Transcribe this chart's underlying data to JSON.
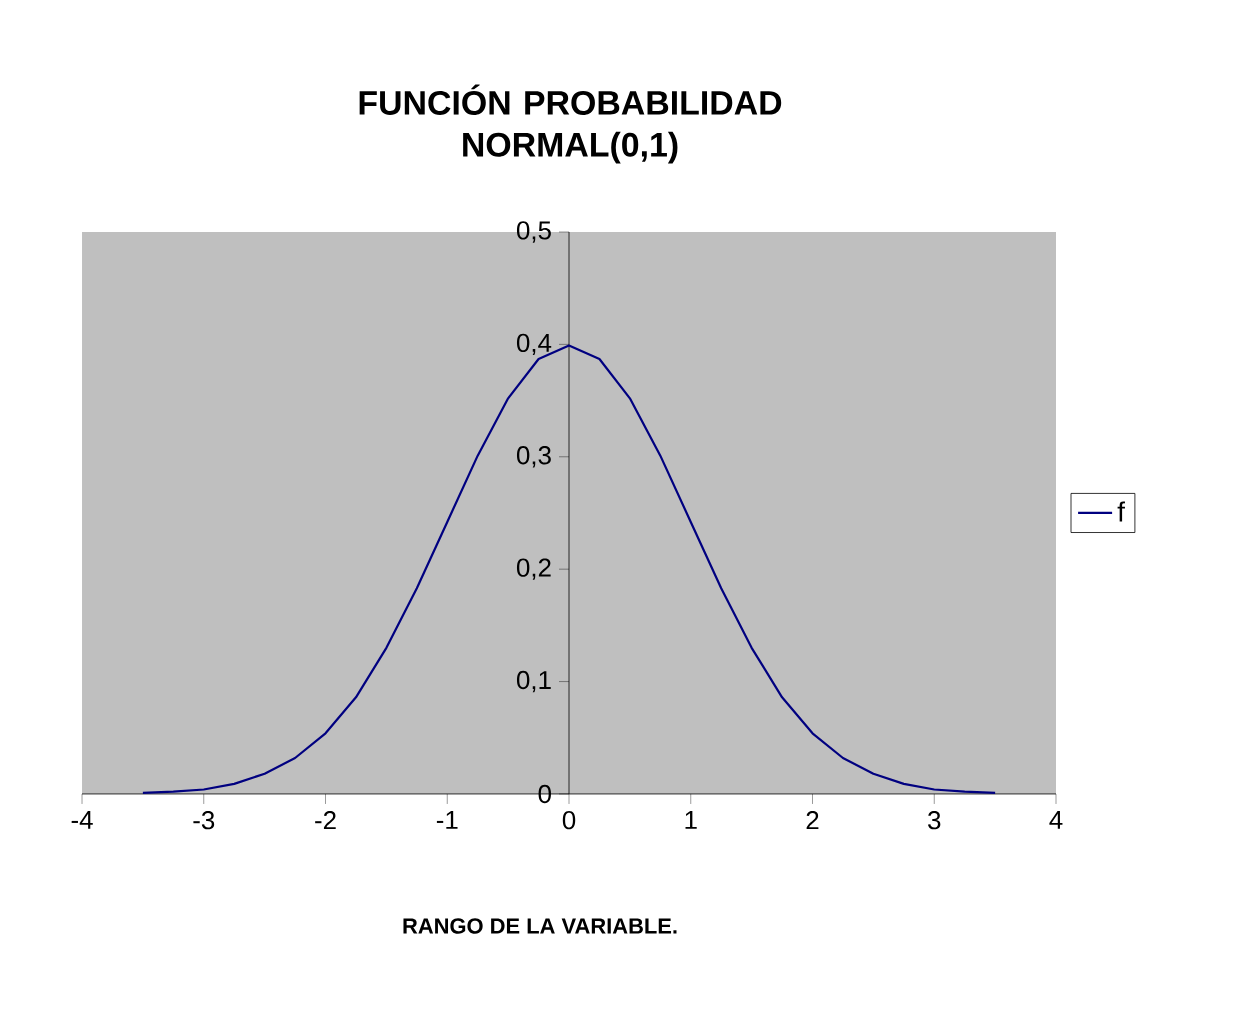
{
  "chart_data": {
    "type": "line",
    "title": "FUNCIÓN  PROBABILIDAD NORMAL(0,1)",
    "xlabel": "RANGO DE LA VARIABLE.",
    "x": [
      -3.5,
      -3.25,
      -3,
      -2.75,
      -2.5,
      -2.25,
      -2,
      -1.75,
      -1.5,
      -1.25,
      -1,
      -0.75,
      -0.5,
      -0.25,
      0,
      0.25,
      0.5,
      0.75,
      1,
      1.25,
      1.5,
      1.75,
      2,
      2.25,
      2.5,
      2.75,
      3,
      3.25,
      3.5
    ],
    "series": [
      {
        "name": "f",
        "color": "#000080",
        "values": [
          0.001,
          0.002,
          0.004,
          0.009,
          0.018,
          0.032,
          0.054,
          0.086,
          0.13,
          0.183,
          0.242,
          0.301,
          0.352,
          0.387,
          0.399,
          0.387,
          0.352,
          0.301,
          0.242,
          0.183,
          0.13,
          0.086,
          0.054,
          0.032,
          0.018,
          0.009,
          0.004,
          0.002,
          0.001
        ]
      }
    ],
    "xlim": [
      -4,
      4
    ],
    "ylim": [
      0,
      0.5
    ],
    "xticks": [
      -4,
      -3,
      -2,
      -1,
      0,
      1,
      2,
      3,
      4
    ],
    "yticks": [
      {
        "value": 0,
        "label": "0"
      },
      {
        "value": 0.1,
        "label": "0,1"
      },
      {
        "value": 0.2,
        "label": "0,2"
      },
      {
        "value": 0.3,
        "label": "0,3"
      },
      {
        "value": 0.4,
        "label": "0,4"
      },
      {
        "value": 0.5,
        "label": "0,5"
      }
    ],
    "legend": "right",
    "grid": false,
    "marker": "none",
    "line_style": "solid"
  }
}
